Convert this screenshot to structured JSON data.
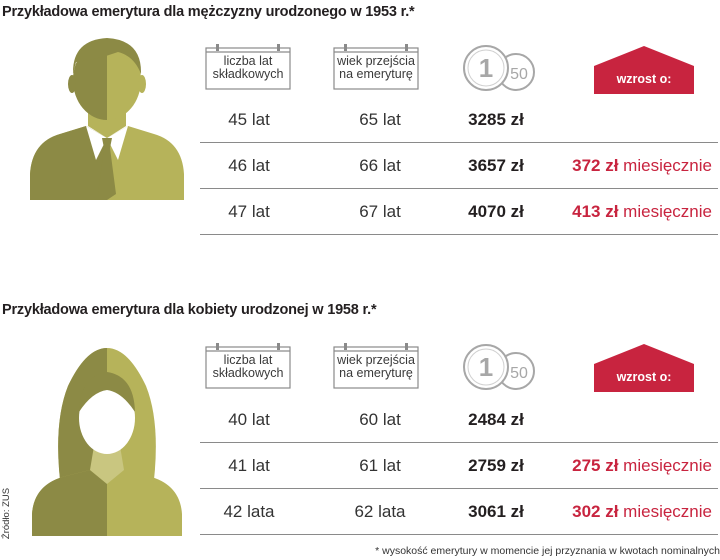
{
  "colors": {
    "olive_dark": "#8c8a45",
    "olive_light": "#b6b35a",
    "red": "#c8243f",
    "coin_gray": "#a7a7a7"
  },
  "icons": {
    "calendar": "calendar-icon",
    "coins": "coins-icon",
    "badge": "increase-arrow-icon"
  },
  "sections": [
    {
      "title": "Przykładowa emerytura dla mężczyzny urodzonego w 1953 r.*",
      "header": {
        "years_label_1": "liczba lat",
        "years_label_2": "składkowych",
        "age_label_1": "wiek przejścia",
        "age_label_2": "na emeryturę",
        "coin_1": "1",
        "coin_2": "50",
        "increase_label": "wzrost o:"
      },
      "rows": [
        {
          "years": "45 lat",
          "age": "65 lat",
          "amount": "3285 zł",
          "increase": "",
          "increase_word": ""
        },
        {
          "years": "46 lat",
          "age": "66 lat",
          "amount": "3657 zł",
          "increase": "372 zł",
          "increase_word": " miesięcznie"
        },
        {
          "years": "47 lat",
          "age": "67 lat",
          "amount": "4070 zł",
          "increase": "413 zł",
          "increase_word": " miesięcznie"
        }
      ]
    },
    {
      "title": "Przykładowa emerytura dla kobiety urodzonej w 1958 r.*",
      "header": {
        "years_label_1": "liczba lat",
        "years_label_2": "składkowych",
        "age_label_1": "wiek przejścia",
        "age_label_2": "na emeryturę",
        "coin_1": "1",
        "coin_2": "50",
        "increase_label": "wzrost o:"
      },
      "rows": [
        {
          "years": "40 lat",
          "age": "60 lat",
          "amount": "2484 zł",
          "increase": "",
          "increase_word": ""
        },
        {
          "years": "41 lat",
          "age": "61 lat",
          "amount": "2759 zł",
          "increase": "275 zł",
          "increase_word": " miesięcznie"
        },
        {
          "years": "42 lata",
          "age": "62 lata",
          "amount": "3061 zł",
          "increase": "302 zł",
          "increase_word": " miesięcznie"
        }
      ]
    }
  ],
  "source": "Źródło: ZUS",
  "footnote": "* wysokość emerytury w momencie jej przyznania w kwotach nominalnych"
}
